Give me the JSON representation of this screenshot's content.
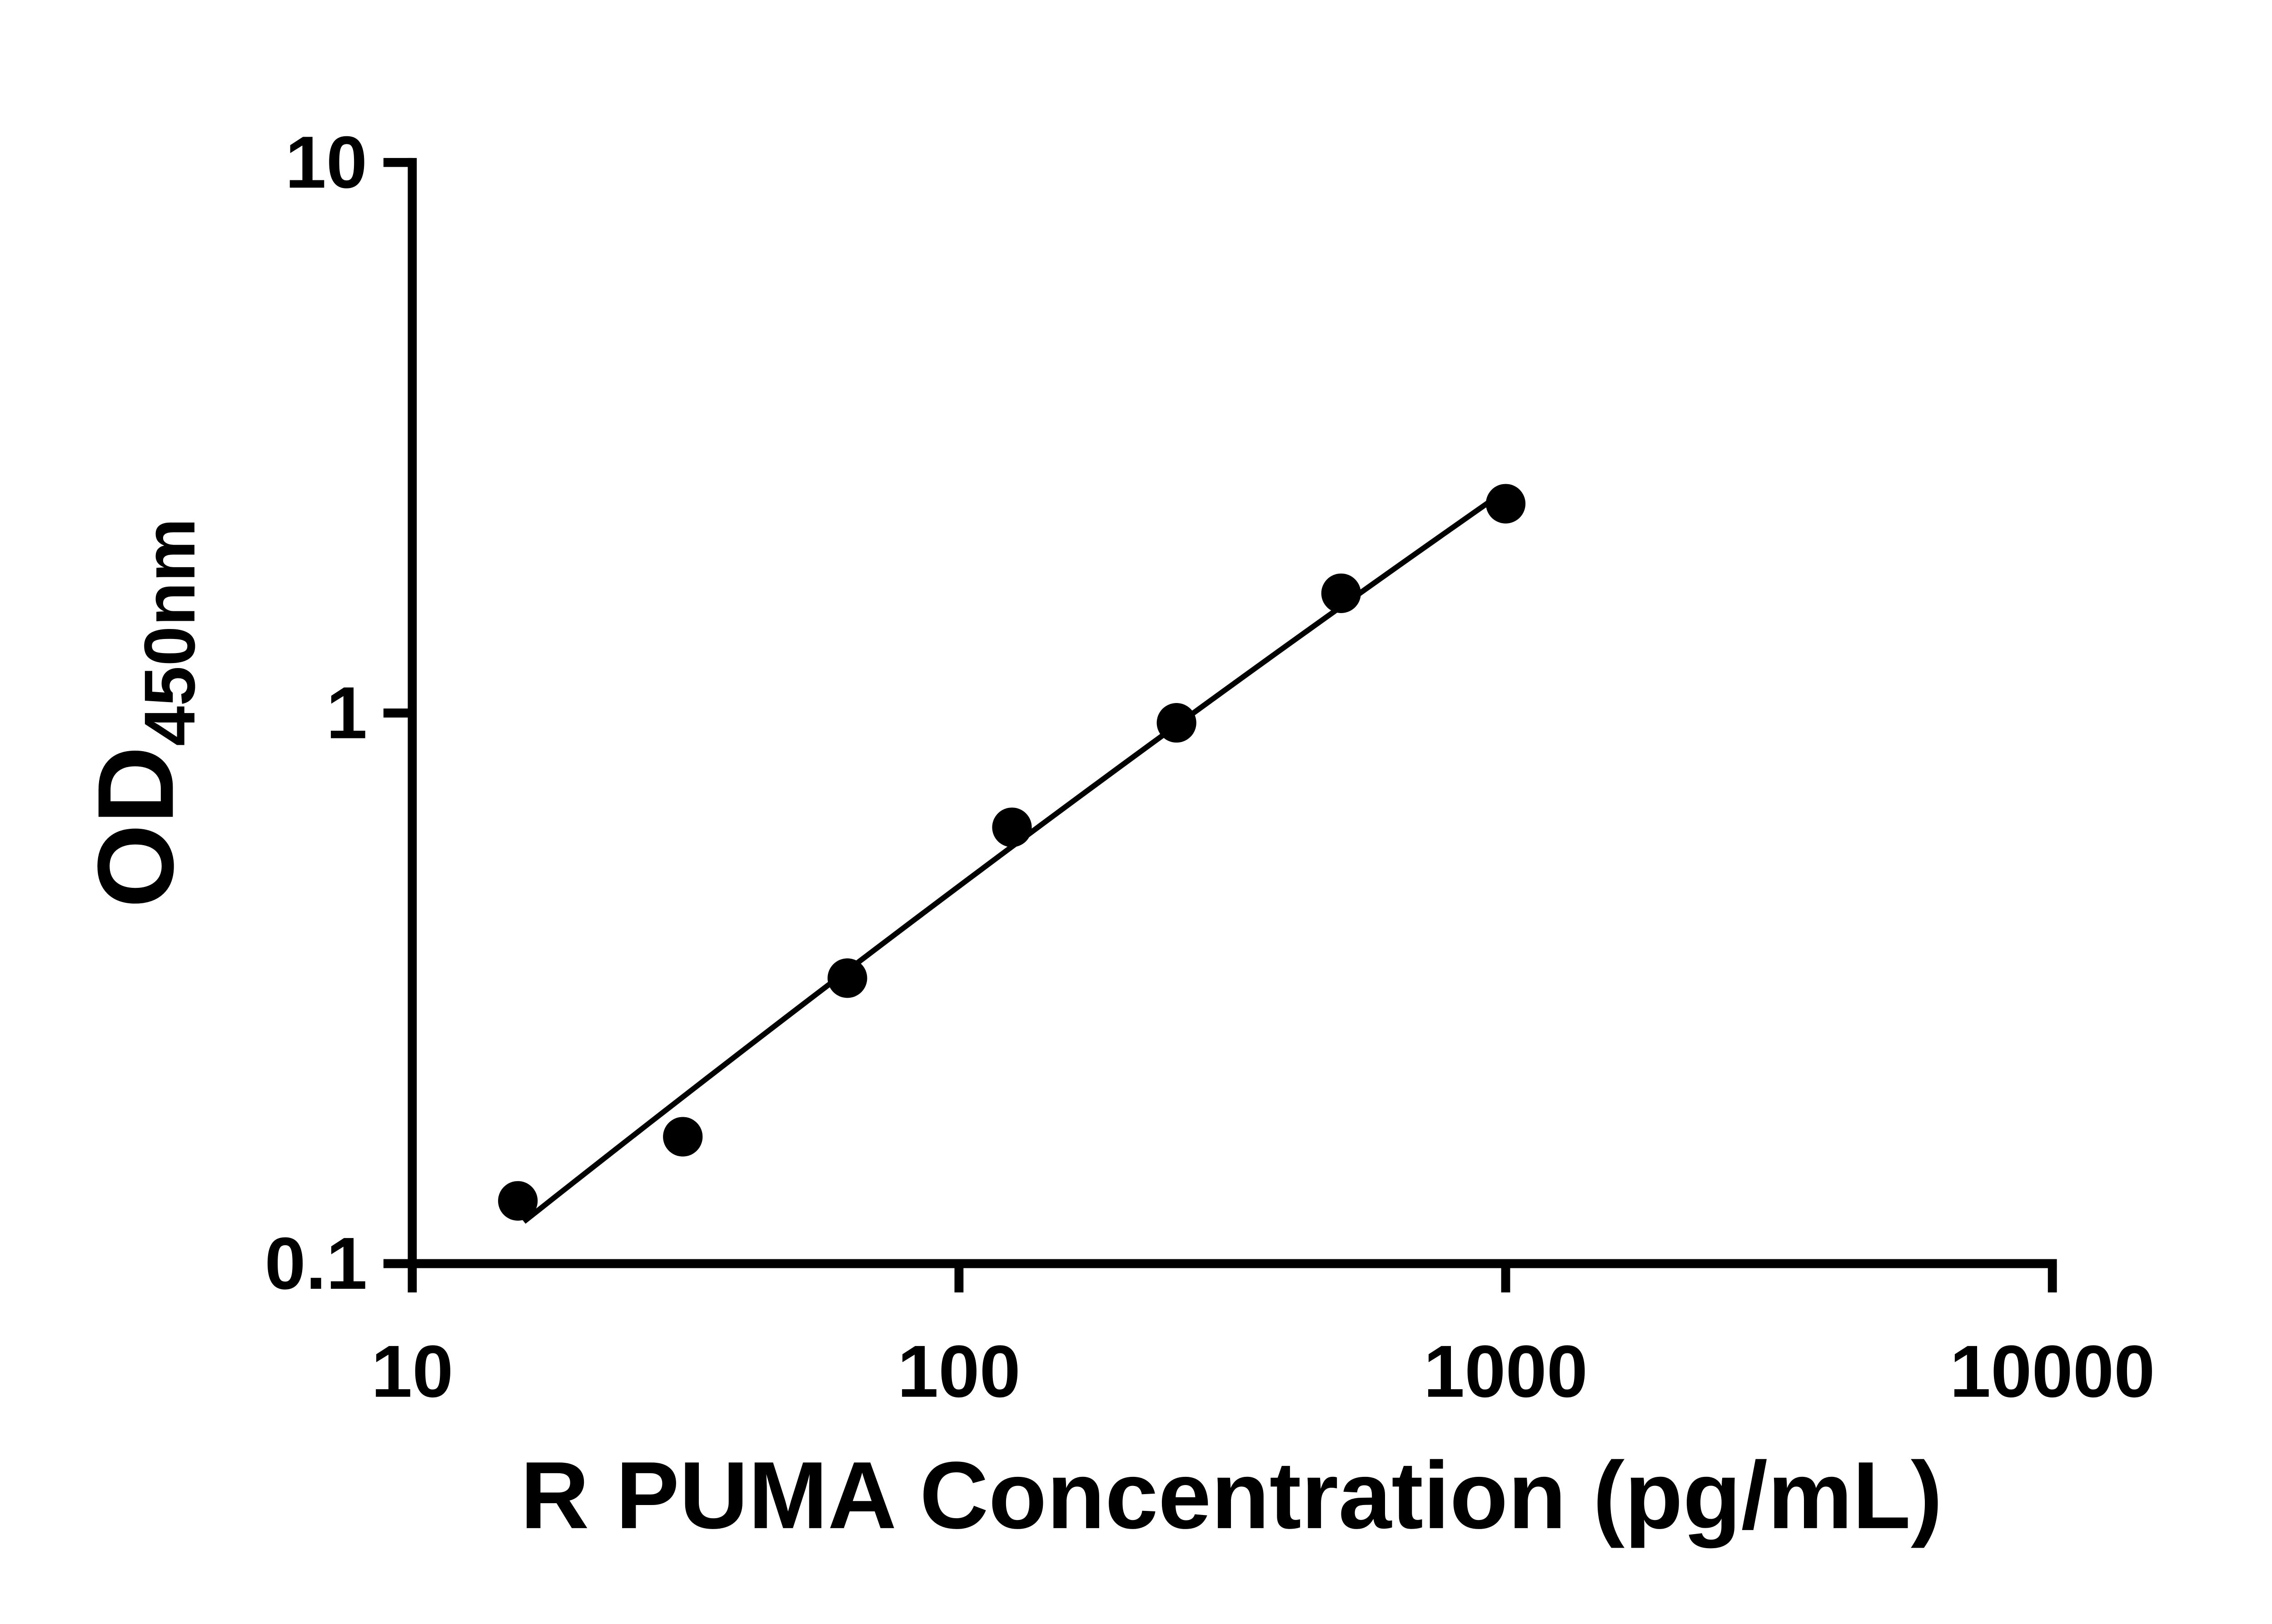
{
  "chart_data": {
    "type": "scatter",
    "title": "",
    "xlabel": "R PUMA Concentration (pg/mL)",
    "ylabel_main": "OD",
    "ylabel_sub": "450nm",
    "x_scale": "log",
    "y_scale": "log",
    "xlim": [
      10,
      10000
    ],
    "ylim": [
      0.1,
      10
    ],
    "x_ticks": [
      10,
      100,
      1000,
      10000
    ],
    "x_tick_labels": [
      "10",
      "100",
      "1000",
      "10000"
    ],
    "y_ticks": [
      0.1,
      1,
      10
    ],
    "y_tick_labels": [
      "0.1",
      "1",
      "10"
    ],
    "grid": false,
    "legend": "none",
    "points": [
      {
        "x": 15.6,
        "y": 0.13
      },
      {
        "x": 31.25,
        "y": 0.17
      },
      {
        "x": 62.5,
        "y": 0.33
      },
      {
        "x": 125,
        "y": 0.62
      },
      {
        "x": 250,
        "y": 0.96
      },
      {
        "x": 500,
        "y": 1.65
      },
      {
        "x": 1000,
        "y": 2.4
      }
    ],
    "trend": {
      "kind": "quadratic-fit-loglog",
      "x_start": 16,
      "x_end": 1000
    },
    "marker_color": "#000000",
    "line_color": "#000000",
    "axis_color": "#000000"
  }
}
